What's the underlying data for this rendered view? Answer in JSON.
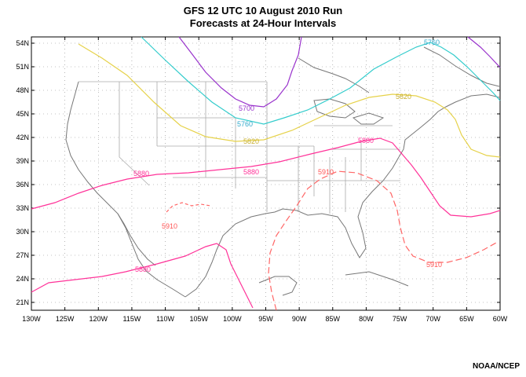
{
  "title_line1": "GFS 12 UTC 10 August 2010 Run",
  "title_line2": "Forecasts at 24-Hour Intervals",
  "credit": "NOAA/NCEP",
  "colors": {
    "contour_5700": "#9933cc",
    "contour_5760": "#33cccc",
    "contour_5820": "#e6d24a",
    "contour_5880": "#ff3399",
    "contour_5910": "#ff6666",
    "borders": "#999999",
    "coast": "#666666"
  },
  "axes": {
    "lat_labels": [
      "54N",
      "51N",
      "48N",
      "45N",
      "42N",
      "39N",
      "36N",
      "33N",
      "30N",
      "27N",
      "24N",
      "21N"
    ],
    "lon_labels": [
      "130W",
      "125W",
      "120W",
      "115W",
      "110W",
      "105W",
      "100W",
      "95W",
      "90W",
      "85W",
      "80W",
      "75W",
      "70W",
      "65W",
      "60W"
    ]
  },
  "contours": [
    {
      "name": "5700",
      "labels": [
        "5700"
      ]
    },
    {
      "name": "5760",
      "labels": [
        "5760",
        "5760"
      ]
    },
    {
      "name": "5820",
      "labels": [
        "5820",
        "5820"
      ]
    },
    {
      "name": "5880",
      "labels": [
        "5880",
        "5880",
        "5880",
        "5880"
      ]
    },
    {
      "name": "5910",
      "labels": [
        "5910",
        "5910",
        "5910"
      ]
    }
  ]
}
